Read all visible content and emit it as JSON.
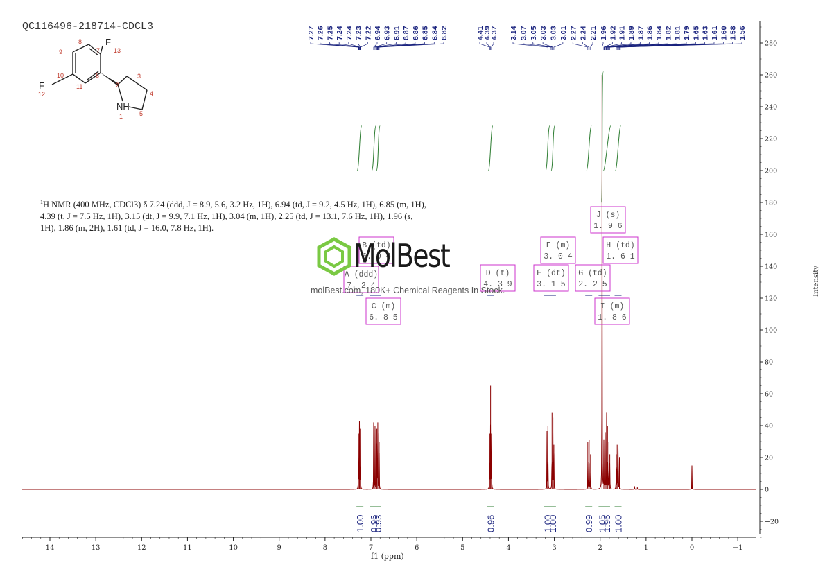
{
  "sample_id": "QC116496-218714-CDCL3",
  "nmr_description": {
    "prefix": "1",
    "text": "H NMR (400 MHz, CDCl3) δ 7.24 (ddd, J = 8.9, 5.6, 3.2 Hz, 1H), 6.94 (td, J = 9.2, 4.5 Hz, 1H), 6.85 (m, 1H), 4.39 (t, J = 7.5 Hz, 1H), 3.15 (dt, J = 9.9, 7.1 Hz, 1H), 3.04 (m, 1H), 2.25 (td, J = 13.1, 7.6 Hz, 1H), 1.96 (s, 1H), 1.86 (m, 2H), 1.61 (td, J = 16.0, 7.8 Hz, 1H)."
  },
  "molecule": {
    "atoms": [
      {
        "label": "F",
        "num": "13"
      },
      {
        "label": "F",
        "num": "12"
      },
      {
        "label": "NH",
        "num": "1"
      }
    ],
    "ring_numbers": [
      "2",
      "3",
      "4",
      "5",
      "6",
      "7",
      "8",
      "9",
      "10",
      "11"
    ]
  },
  "watermark": {
    "brand": "MolBest",
    "tagline": "molBest.com, 180K+ Chemical Reagents In Stock."
  },
  "colors": {
    "spectrum": "#8b0000",
    "peak_labels": "#1a237e",
    "integrals": "#2e7d32",
    "multiplet_boxes": "#cc33cc",
    "watermark_green": "#7ac943"
  },
  "chart_data": {
    "type": "line",
    "title": "",
    "xlabel": "f1 (ppm)",
    "ylabel": "Intensity",
    "xlim": [
      14.6,
      -1.4
    ],
    "ylim": [
      -30,
      290
    ],
    "x_ticks": [
      "14",
      "13",
      "12",
      "11",
      "10",
      "9",
      "8",
      "7",
      "6",
      "5",
      "4",
      "3",
      "2",
      "1",
      "0",
      "-1"
    ],
    "y_ticks": [
      "-20",
      "0",
      "20",
      "40",
      "60",
      "80",
      "100",
      "120",
      "140",
      "160",
      "180",
      "200",
      "220",
      "240",
      "260",
      "280"
    ],
    "peak_labels": [
      "7.27",
      "7.26",
      "7.25",
      "7.24",
      "7.24",
      "7.23",
      "7.22",
      "6.94",
      "6.93",
      "6.91",
      "6.87",
      "6.86",
      "6.85",
      "6.84",
      "6.82",
      "4.41",
      "4.39",
      "4.37",
      "3.14",
      "3.07",
      "3.05",
      "3.03",
      "3.03",
      "3.01",
      "2.27",
      "2.24",
      "2.21",
      "1.96",
      "1.92",
      "1.91",
      "1.89",
      "1.87",
      "1.86",
      "1.84",
      "1.82",
      "1.81",
      "1.79",
      "1.65",
      "1.63",
      "1.61",
      "1.60",
      "1.58",
      "1.56"
    ],
    "peaks": [
      {
        "ppm": 7.27,
        "height": 35
      },
      {
        "ppm": 7.25,
        "height": 43
      },
      {
        "ppm": 7.23,
        "height": 38
      },
      {
        "ppm": 6.94,
        "height": 42
      },
      {
        "ppm": 6.91,
        "height": 40
      },
      {
        "ppm": 6.87,
        "height": 38
      },
      {
        "ppm": 6.85,
        "height": 42
      },
      {
        "ppm": 6.82,
        "height": 30
      },
      {
        "ppm": 4.41,
        "height": 35
      },
      {
        "ppm": 4.39,
        "height": 65
      },
      {
        "ppm": 4.37,
        "height": 35
      },
      {
        "ppm": 3.16,
        "height": 36
      },
      {
        "ppm": 3.14,
        "height": 40
      },
      {
        "ppm": 3.05,
        "height": 48
      },
      {
        "ppm": 3.03,
        "height": 45
      },
      {
        "ppm": 3.01,
        "height": 28
      },
      {
        "ppm": 2.27,
        "height": 30
      },
      {
        "ppm": 2.24,
        "height": 31
      },
      {
        "ppm": 2.21,
        "height": 22
      },
      {
        "ppm": 1.96,
        "height": 260
      },
      {
        "ppm": 1.92,
        "height": 30
      },
      {
        "ppm": 1.89,
        "height": 35
      },
      {
        "ppm": 1.86,
        "height": 48
      },
      {
        "ppm": 1.84,
        "height": 40
      },
      {
        "ppm": 1.81,
        "height": 30
      },
      {
        "ppm": 1.79,
        "height": 22
      },
      {
        "ppm": 1.65,
        "height": 22
      },
      {
        "ppm": 1.63,
        "height": 28
      },
      {
        "ppm": 1.61,
        "height": 26
      },
      {
        "ppm": 1.58,
        "height": 20
      },
      {
        "ppm": 1.25,
        "height": 2
      },
      {
        "ppm": 1.19,
        "height": 1.5
      },
      {
        "ppm": 0.0,
        "height": 15
      }
    ],
    "integrals": [
      {
        "ppm": 7.24,
        "value": "1.00"
      },
      {
        "ppm": 6.94,
        "value": "0.96"
      },
      {
        "ppm": 6.85,
        "value": "0.93"
      },
      {
        "ppm": 4.39,
        "value": "0.96"
      },
      {
        "ppm": 3.15,
        "value": "1.00"
      },
      {
        "ppm": 3.04,
        "value": "1.00"
      },
      {
        "ppm": 2.25,
        "value": "0.99"
      },
      {
        "ppm": 1.96,
        "value": "1.05"
      },
      {
        "ppm": 1.86,
        "value": "1.96"
      },
      {
        "ppm": 1.61,
        "value": "1.00"
      }
    ],
    "multiplets": [
      {
        "id": "A",
        "type": "ddd",
        "shift": "7.24"
      },
      {
        "id": "B",
        "type": "td",
        "shift": "6.94"
      },
      {
        "id": "C",
        "type": "m",
        "shift": "6.85"
      },
      {
        "id": "D",
        "type": "t",
        "shift": "4.39"
      },
      {
        "id": "E",
        "type": "dt",
        "shift": "3.15"
      },
      {
        "id": "F",
        "type": "m",
        "shift": "3.04"
      },
      {
        "id": "G",
        "type": "td",
        "shift": "2.25"
      },
      {
        "id": "H",
        "type": "td",
        "shift": "1.61"
      },
      {
        "id": "I",
        "type": "m",
        "shift": "1.86"
      },
      {
        "id": "J",
        "type": "s",
        "shift": "1.96"
      }
    ]
  }
}
